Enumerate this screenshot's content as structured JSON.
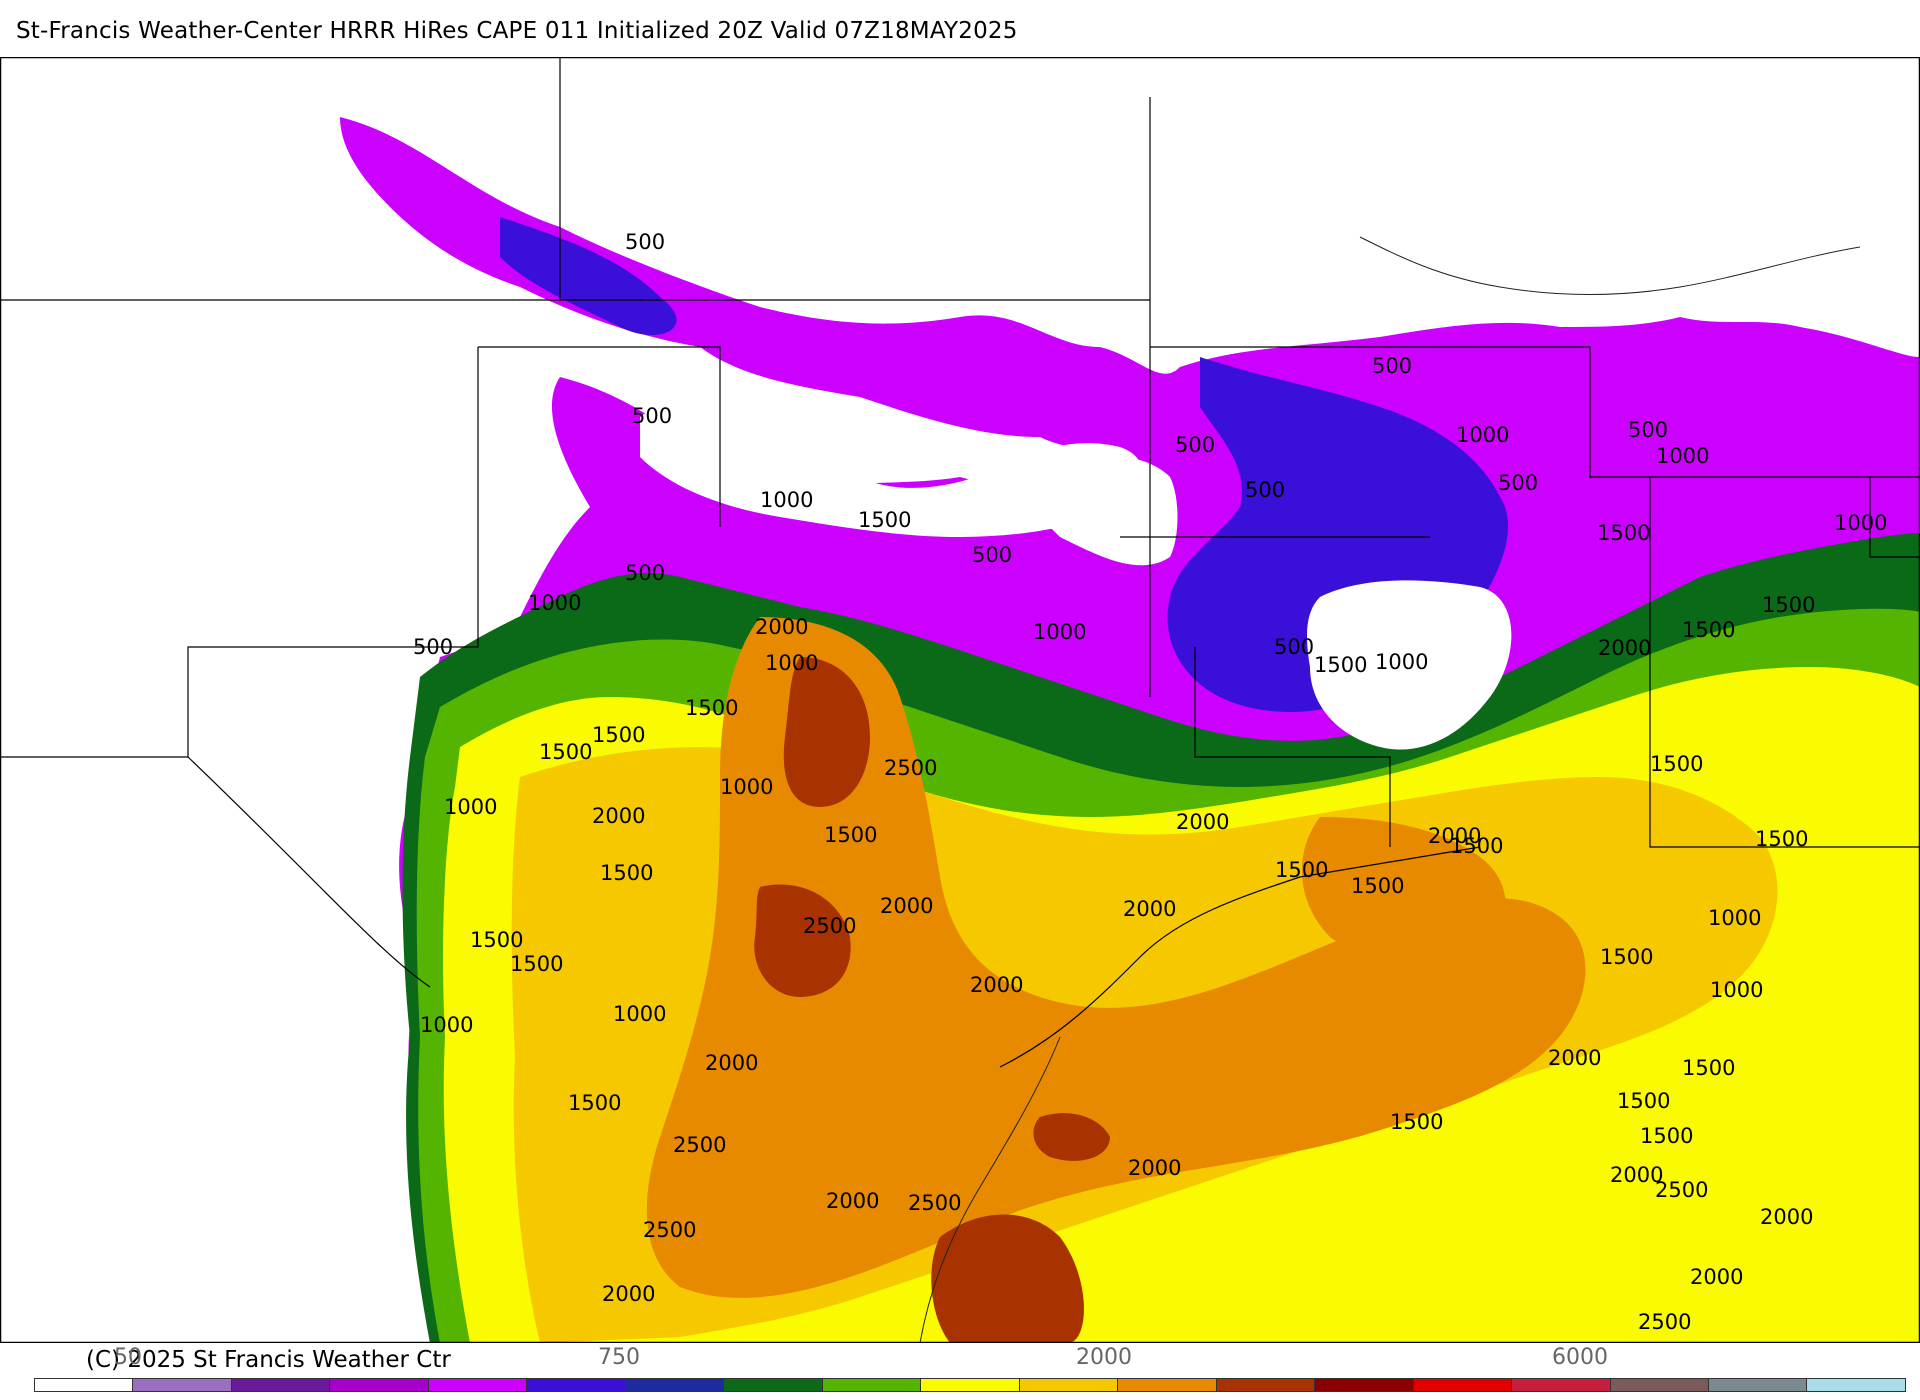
{
  "title": "St-Francis Weather-Center HRRR HiRes CAPE  011 Initialized  20Z Valid 07Z18MAY2025",
  "copyright": "(C) 2025 St Francis Weather Ctr",
  "colorbar": {
    "labels": [
      "50",
      "750",
      "2000",
      "6000"
    ],
    "colors": [
      "#ffffff",
      "#9b6fc0",
      "#6a1a9a",
      "#a800cc",
      "#cc00ff",
      "#3a10d8",
      "#1e2aa0",
      "#0a6a18",
      "#55b400",
      "#fafa00",
      "#f5c800",
      "#e88a00",
      "#a83200",
      "#8a0000",
      "#e00000",
      "#c81e3c",
      "#7a5a5a",
      "#7a8a90",
      "#a8dce6"
    ]
  },
  "contour_labels": [
    "500",
    "500",
    "500",
    "500",
    "500",
    "500",
    "500",
    "500",
    "500",
    "500",
    "500",
    "1000",
    "1000",
    "1000",
    "1000",
    "1000",
    "1000",
    "1000",
    "1000",
    "1000",
    "1000",
    "1000",
    "1000",
    "1000",
    "1000",
    "1500",
    "1500",
    "1500",
    "1500",
    "1500",
    "1500",
    "1500",
    "1500",
    "1500",
    "1500",
    "1500",
    "1500",
    "1500",
    "1500",
    "1500",
    "1500",
    "1500",
    "1500",
    "1500",
    "1500",
    "1500",
    "1500",
    "1500",
    "2000",
    "2000",
    "2000",
    "2000",
    "2000",
    "2000",
    "2000",
    "2000",
    "2000",
    "2000",
    "2000",
    "2000",
    "2000",
    "2000",
    "2000",
    "2000",
    "2500",
    "2500",
    "2500",
    "2500",
    "2500",
    "2500",
    "2500"
  ]
}
